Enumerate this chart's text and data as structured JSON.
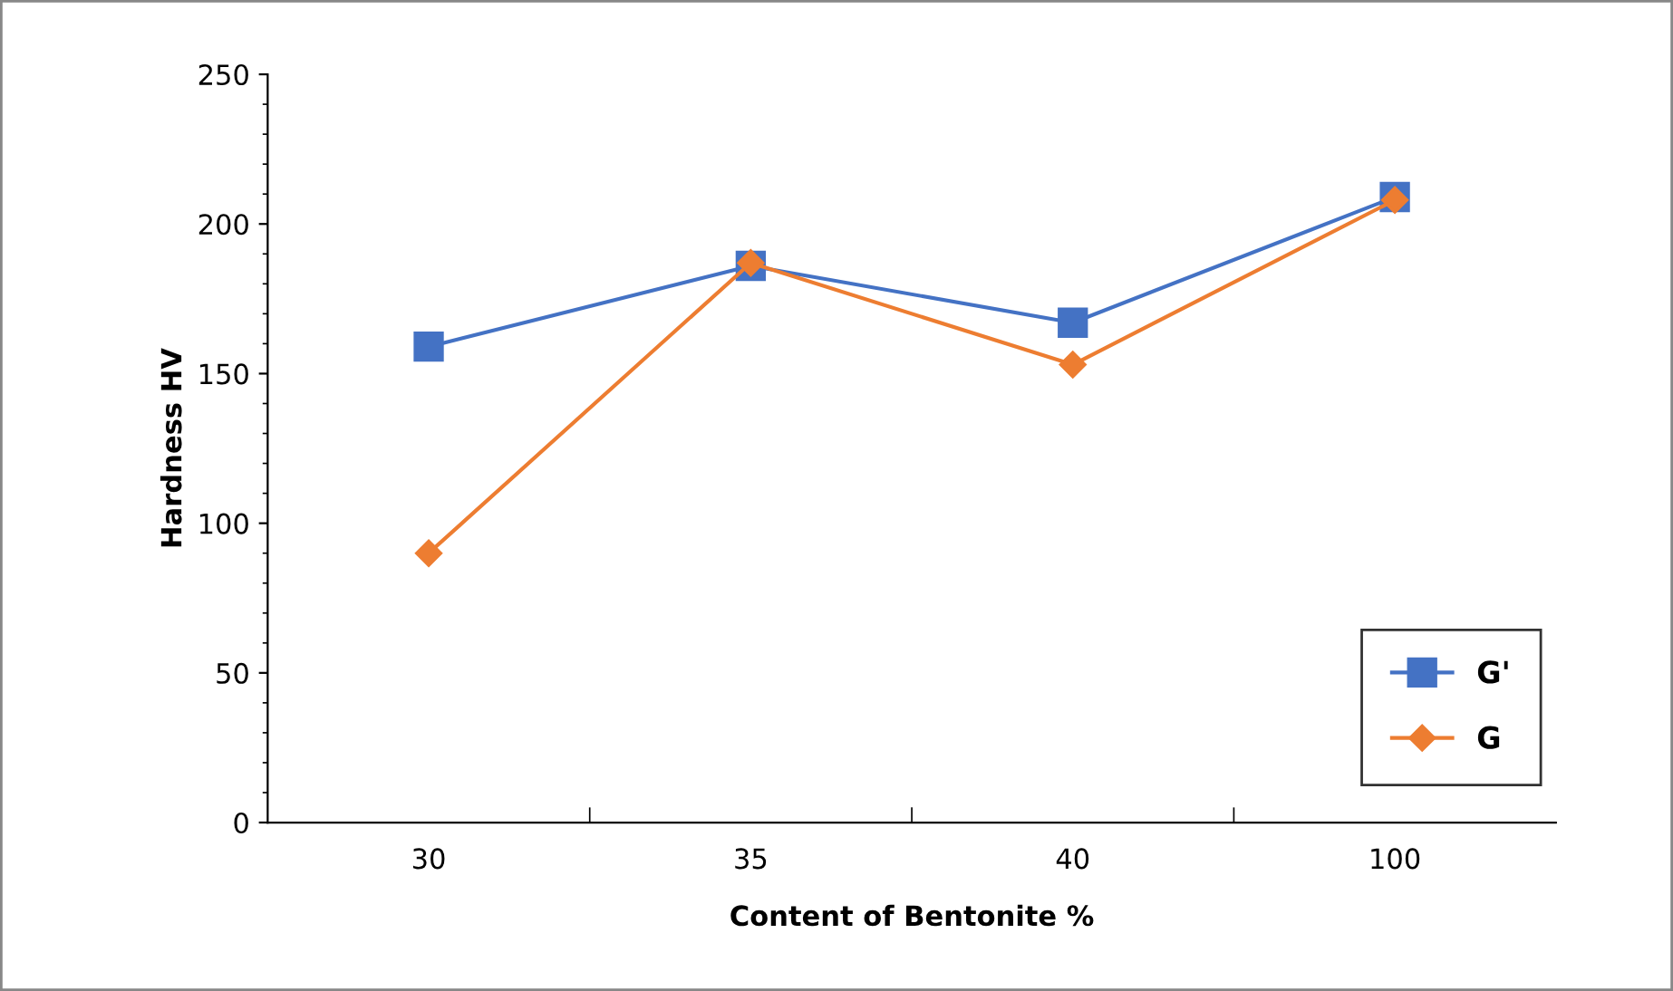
{
  "chart_data": {
    "type": "line",
    "xlabel": "Content of Bentonite %",
    "ylabel": "Hardness HV",
    "categories": [
      "30",
      "35",
      "40",
      "100"
    ],
    "series": [
      {
        "name": "G'",
        "color": "#4472c4",
        "marker": "square",
        "values": [
          159,
          186,
          167,
          209
        ]
      },
      {
        "name": "G",
        "color": "#ed7d31",
        "marker": "diamond",
        "values": [
          90,
          187,
          153,
          208
        ]
      }
    ],
    "ylim": [
      0,
      250
    ],
    "yticks": [
      0,
      50,
      100,
      150,
      200,
      250
    ],
    "grid": false,
    "legend": "bottom right"
  }
}
